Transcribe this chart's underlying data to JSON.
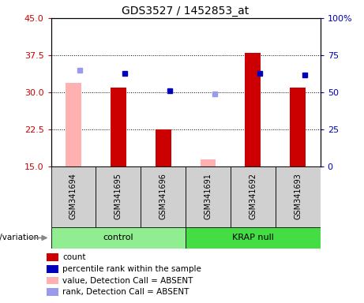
{
  "title": "GDS3527 / 1452853_at",
  "samples": [
    "GSM341694",
    "GSM341695",
    "GSM341696",
    "GSM341691",
    "GSM341692",
    "GSM341693"
  ],
  "red_bars": [
    null,
    31.0,
    22.5,
    null,
    38.0,
    31.0
  ],
  "pink_bars": [
    32.0,
    null,
    null,
    16.5,
    null,
    null
  ],
  "blue_dots": [
    null,
    63.0,
    51.0,
    null,
    63.0,
    62.0
  ],
  "lightblue_dots": [
    65.0,
    null,
    null,
    49.0,
    null,
    null
  ],
  "ylim_left": [
    15,
    45
  ],
  "ylim_right": [
    0,
    100
  ],
  "yticks_left": [
    15,
    22.5,
    30,
    37.5,
    45
  ],
  "yticks_right": [
    0,
    25,
    50,
    75,
    100
  ],
  "ctrl_color": "#90ee90",
  "krap_color": "#44dd44",
  "box_color": "#d0d0d0",
  "red_color": "#cc0000",
  "pink_color": "#ffb0b0",
  "blue_color": "#0000bb",
  "lightblue_color": "#9999ee",
  "legend_items": [
    "count",
    "percentile rank within the sample",
    "value, Detection Call = ABSENT",
    "rank, Detection Call = ABSENT"
  ],
  "legend_colors": [
    "#cc0000",
    "#0000bb",
    "#ffb0b0",
    "#9999ee"
  ],
  "bar_width": 0.35
}
